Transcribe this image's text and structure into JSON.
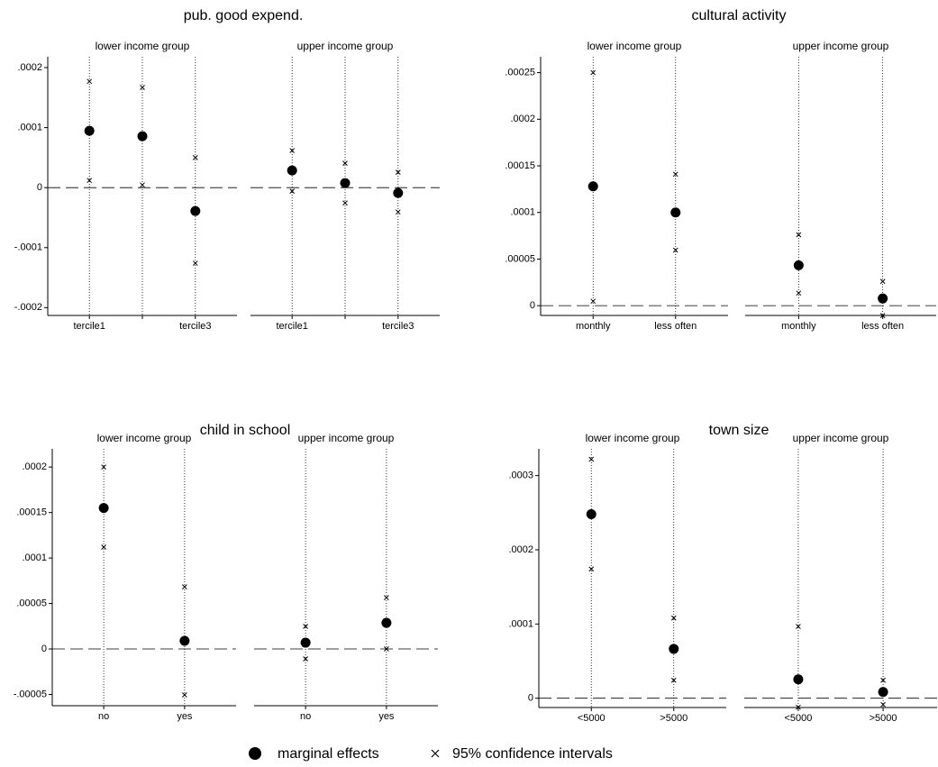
{
  "chart_data": [
    {
      "type": "dot-ci",
      "title": "pub. good expend.",
      "ylim": [
        -0.000213,
        0.000218
      ],
      "yticks": [
        {
          "value": 0.0002,
          "label": ".0002"
        },
        {
          "value": 0.0001,
          "label": ".0001"
        },
        0,
        {
          "value": -0.0001,
          "label": "-.0001"
        },
        {
          "value": -0.0002,
          "label": "-.0002"
        }
      ],
      "panels": [
        {
          "title": "lower income group",
          "categories": [
            "tercile1",
            null,
            "tercile3"
          ],
          "values": [
            9.47e-05,
            8.57e-05,
            -3.9e-05
          ],
          "ci_lower": [
            1.2e-05,
            4.5e-06,
            -0.000126
          ],
          "ci_upper": [
            0.000177,
            0.000167,
            5e-05
          ]
        },
        {
          "title": "upper income group",
          "categories": [
            "tercile1",
            null,
            "tercile3"
          ],
          "values": [
            2.86e-05,
            7.5e-06,
            -9e-06
          ],
          "ci_lower": [
            -6e-06,
            -2.56e-05,
            -4.06e-05
          ],
          "ci_upper": [
            6.17e-05,
            4.06e-05,
            2.56e-05
          ]
        }
      ]
    },
    {
      "type": "dot-ci",
      "title": "cultural activity",
      "ylim": [
        -1.05e-05,
        0.000267
      ],
      "yticks": [
        {
          "value": 0.00025,
          "label": ".00025"
        },
        {
          "value": 0.0002,
          "label": ".0002"
        },
        {
          "value": 0.00015,
          "label": ".00015"
        },
        {
          "value": 0.0001,
          "label": ".0001"
        },
        {
          "value": 5e-05,
          "label": ".00005"
        },
        0
      ],
      "panels": [
        {
          "title": "lower income group",
          "categories": [
            "monthly",
            "less often"
          ],
          "values": [
            0.000128,
            0.0001
          ],
          "ci_lower": [
            4.8e-06,
            5.96e-05
          ],
          "ci_upper": [
            0.00025,
            0.000141
          ]
        },
        {
          "title": "upper income group",
          "categories": [
            "monthly",
            "less often"
          ],
          "values": [
            4.33e-05,
            7.7e-06
          ],
          "ci_lower": [
            1.35e-05,
            -1.06e-05
          ],
          "ci_upper": [
            7.6e-05,
            2.6e-05
          ]
        }
      ]
    },
    {
      "type": "dot-ci",
      "title": "child in school",
      "ylim": [
        -6.24e-05,
        0.00022
      ],
      "yticks": [
        {
          "value": 0.0002,
          "label": ".0002"
        },
        {
          "value": 0.00015,
          "label": ".00015"
        },
        {
          "value": 0.0001,
          "label": ".0001"
        },
        {
          "value": 5e-05,
          "label": ".00005"
        },
        0,
        {
          "value": -5e-05,
          "label": "-.00005"
        }
      ],
      "panels": [
        {
          "title": "lower income group",
          "categories": [
            "no",
            "yes"
          ],
          "values": [
            0.000155,
            8.9e-06
          ],
          "ci_lower": [
            0.000112,
            -5.05e-05
          ],
          "ci_upper": [
            0.0002,
            6.83e-05
          ]
        },
        {
          "title": "upper income group",
          "categories": [
            "no",
            "yes"
          ],
          "values": [
            6.9e-06,
            2.87e-05
          ],
          "ci_lower": [
            -1.09e-05,
            0
          ],
          "ci_upper": [
            2.48e-05,
            5.64e-05
          ]
        }
      ]
    },
    {
      "type": "dot-ci",
      "title": "town size",
      "ylim": [
        -1.25e-05,
        0.000336
      ],
      "yticks": [
        {
          "value": 0.0003,
          "label": ".0003"
        },
        {
          "value": 0.0002,
          "label": ".0002"
        },
        {
          "value": 0.0001,
          "label": ".0001"
        },
        0
      ],
      "panels": [
        {
          "title": "lower income group",
          "categories": [
            "<5000",
            ">5000"
          ],
          "values": [
            0.000248,
            6.65e-05
          ],
          "ci_lower": [
            0.000174,
            2.42e-05
          ],
          "ci_upper": [
            0.000322,
            0.000108
          ]
        },
        {
          "title": "upper income group",
          "categories": [
            "<5000",
            ">5000"
          ],
          "values": [
            2.54e-05,
            8.5e-06
          ],
          "ci_lower": [
            -1.21e-05,
            -8.5e-06
          ],
          "ci_upper": [
            9.67e-05,
            2.42e-05
          ]
        }
      ]
    }
  ],
  "legend": [
    "marginal effects",
    "95% confidence intervals"
  ]
}
